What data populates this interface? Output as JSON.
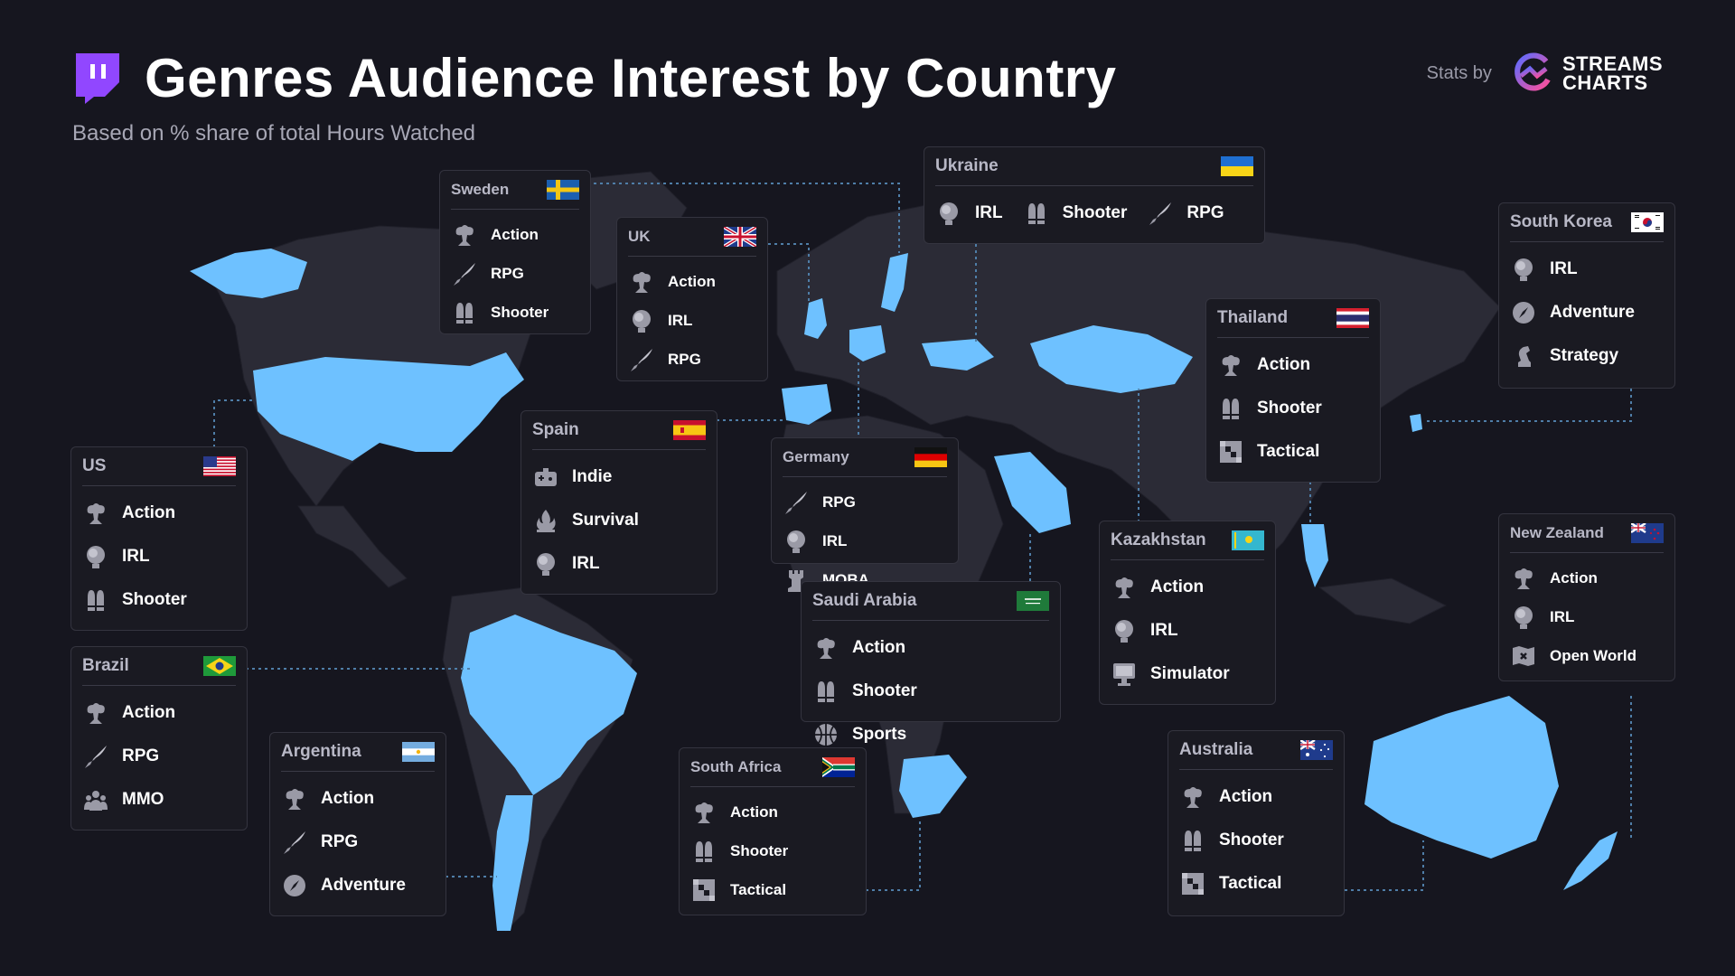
{
  "header": {
    "title": "Genres Audience Interest by Country",
    "subtitle": "Based on % share of total Hours Watched",
    "stats_by": "Stats by",
    "brand_line1": "STREAMS",
    "brand_line2": "CHARTS"
  },
  "colors": {
    "highlight": "#6ec1ff",
    "land": "#2b2b36",
    "background": "#16161f",
    "accent": "#9147ff"
  },
  "cards": [
    {
      "id": "sweden",
      "name": "Sweden",
      "genres": [
        {
          "label": "Action",
          "icon": "action"
        },
        {
          "label": "RPG",
          "icon": "rpg"
        },
        {
          "label": "Shooter",
          "icon": "shooter"
        }
      ]
    },
    {
      "id": "uk",
      "name": "UK",
      "genres": [
        {
          "label": "Action",
          "icon": "action"
        },
        {
          "label": "IRL",
          "icon": "irl"
        },
        {
          "label": "RPG",
          "icon": "rpg"
        }
      ]
    },
    {
      "id": "ukraine",
      "name": "Ukraine",
      "genres": [
        {
          "label": "IRL",
          "icon": "irl"
        },
        {
          "label": "Shooter",
          "icon": "shooter"
        },
        {
          "label": "RPG",
          "icon": "rpg"
        }
      ]
    },
    {
      "id": "south-korea",
      "name": "South Korea",
      "genres": [
        {
          "label": "IRL",
          "icon": "irl"
        },
        {
          "label": "Adventure",
          "icon": "adventure"
        },
        {
          "label": "Strategy",
          "icon": "strategy"
        }
      ]
    },
    {
      "id": "thailand",
      "name": "Thailand",
      "genres": [
        {
          "label": "Action",
          "icon": "action"
        },
        {
          "label": "Shooter",
          "icon": "shooter"
        },
        {
          "label": "Tactical",
          "icon": "tactical"
        }
      ]
    },
    {
      "id": "us",
      "name": "US",
      "genres": [
        {
          "label": "Action",
          "icon": "action"
        },
        {
          "label": "IRL",
          "icon": "irl"
        },
        {
          "label": "Shooter",
          "icon": "shooter"
        }
      ]
    },
    {
      "id": "spain",
      "name": "Spain",
      "genres": [
        {
          "label": "Indie",
          "icon": "indie"
        },
        {
          "label": "Survival",
          "icon": "survival"
        },
        {
          "label": "IRL",
          "icon": "irl"
        }
      ]
    },
    {
      "id": "germany",
      "name": "Germany",
      "genres": [
        {
          "label": "RPG",
          "icon": "rpg"
        },
        {
          "label": "IRL",
          "icon": "irl"
        },
        {
          "label": "MOBA",
          "icon": "moba"
        }
      ]
    },
    {
      "id": "kazakhstan",
      "name": "Kazakhstan",
      "genres": [
        {
          "label": "Action",
          "icon": "action"
        },
        {
          "label": "IRL",
          "icon": "irl"
        },
        {
          "label": "Simulator",
          "icon": "simulator"
        }
      ]
    },
    {
      "id": "new-zealand",
      "name": "New Zealand",
      "genres": [
        {
          "label": "Action",
          "icon": "action"
        },
        {
          "label": "IRL",
          "icon": "irl"
        },
        {
          "label": "Open World",
          "icon": "openworld"
        }
      ]
    },
    {
      "id": "brazil",
      "name": "Brazil",
      "genres": [
        {
          "label": "Action",
          "icon": "action"
        },
        {
          "label": "RPG",
          "icon": "rpg"
        },
        {
          "label": "MMO",
          "icon": "mmo"
        }
      ]
    },
    {
      "id": "saudi-arabia",
      "name": "Saudi Arabia",
      "genres": [
        {
          "label": "Action",
          "icon": "action"
        },
        {
          "label": "Shooter",
          "icon": "shooter"
        },
        {
          "label": "Sports",
          "icon": "sports"
        }
      ]
    },
    {
      "id": "argentina",
      "name": "Argentina",
      "genres": [
        {
          "label": "Action",
          "icon": "action"
        },
        {
          "label": "RPG",
          "icon": "rpg"
        },
        {
          "label": "Adventure",
          "icon": "adventure"
        }
      ]
    },
    {
      "id": "south-africa",
      "name": "South Africa",
      "genres": [
        {
          "label": "Action",
          "icon": "action"
        },
        {
          "label": "Shooter",
          "icon": "shooter"
        },
        {
          "label": "Tactical",
          "icon": "tactical"
        }
      ]
    },
    {
      "id": "australia",
      "name": "Australia",
      "genres": [
        {
          "label": "Action",
          "icon": "action"
        },
        {
          "label": "Shooter",
          "icon": "shooter"
        },
        {
          "label": "Tactical",
          "icon": "tactical"
        }
      ]
    }
  ]
}
